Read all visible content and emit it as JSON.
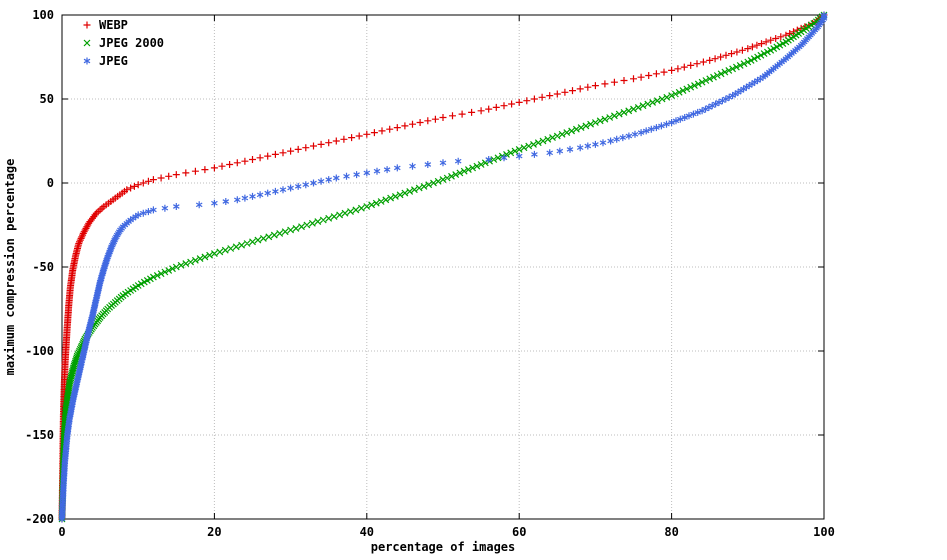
{
  "chart_data": {
    "type": "scatter",
    "title": "",
    "xlabel": "percentage of images",
    "ylabel": "maximum compression percentage",
    "xlim": [
      0,
      100
    ],
    "ylim": [
      -200,
      100
    ],
    "x_ticks": [
      0,
      20,
      40,
      60,
      80,
      100
    ],
    "y_ticks": [
      100,
      50,
      0,
      -50,
      -100,
      -150,
      -200
    ],
    "grid": true,
    "legend_position": "top-left",
    "marker_y_step": 1,
    "grid_color": "#bdbdbd",
    "border_color": "#000000",
    "series": [
      {
        "name": "WEBP",
        "marker": "plus",
        "color": "#e00000",
        "points": [
          [
            0,
            -200
          ],
          [
            0.1,
            -170
          ],
          [
            0.15,
            -150
          ],
          [
            0.2,
            -135
          ],
          [
            0.3,
            -120
          ],
          [
            0.4,
            -108
          ],
          [
            0.5,
            -100
          ],
          [
            0.7,
            -85
          ],
          [
            0.9,
            -72
          ],
          [
            1.1,
            -62
          ],
          [
            1.4,
            -52
          ],
          [
            1.8,
            -43
          ],
          [
            2.2,
            -36
          ],
          [
            2.8,
            -30
          ],
          [
            3.5,
            -24
          ],
          [
            4.5,
            -18
          ],
          [
            5.5,
            -14
          ],
          [
            7,
            -9
          ],
          [
            8.5,
            -4
          ],
          [
            10,
            -1
          ],
          [
            12,
            2
          ],
          [
            15,
            5
          ],
          [
            20,
            9
          ],
          [
            25,
            14
          ],
          [
            30,
            19
          ],
          [
            35,
            24
          ],
          [
            40,
            29
          ],
          [
            45,
            34
          ],
          [
            50,
            39
          ],
          [
            55,
            43
          ],
          [
            60,
            48
          ],
          [
            65,
            53
          ],
          [
            70,
            58
          ],
          [
            75,
            62
          ],
          [
            80,
            67
          ],
          [
            85,
            73
          ],
          [
            90,
            80
          ],
          [
            93,
            85
          ],
          [
            95,
            88
          ],
          [
            97,
            92
          ],
          [
            99,
            96
          ],
          [
            100,
            100
          ]
        ]
      },
      {
        "name": "JPEG 2000",
        "marker": "cross",
        "color": "#00a000",
        "points": [
          [
            0,
            -200
          ],
          [
            0.1,
            -180
          ],
          [
            0.2,
            -160
          ],
          [
            0.3,
            -148
          ],
          [
            0.5,
            -135
          ],
          [
            0.8,
            -125
          ],
          [
            1,
            -119
          ],
          [
            1.5,
            -110
          ],
          [
            2,
            -103
          ],
          [
            3,
            -93
          ],
          [
            4,
            -86
          ],
          [
            5,
            -80
          ],
          [
            6,
            -75
          ],
          [
            8,
            -67
          ],
          [
            10,
            -61
          ],
          [
            12,
            -56
          ],
          [
            15,
            -50
          ],
          [
            20,
            -42
          ],
          [
            25,
            -35
          ],
          [
            30,
            -28
          ],
          [
            35,
            -21
          ],
          [
            40,
            -14
          ],
          [
            45,
            -6
          ],
          [
            50,
            2
          ],
          [
            55,
            11
          ],
          [
            60,
            20
          ],
          [
            65,
            28
          ],
          [
            70,
            36
          ],
          [
            75,
            44
          ],
          [
            80,
            52
          ],
          [
            85,
            62
          ],
          [
            90,
            72
          ],
          [
            93,
            79
          ],
          [
            95,
            84
          ],
          [
            97,
            90
          ],
          [
            99,
            96
          ],
          [
            100,
            100
          ]
        ]
      },
      {
        "name": "JPEG",
        "marker": "asterisk",
        "color": "#4169e1",
        "points": [
          [
            0,
            -200
          ],
          [
            0.2,
            -180
          ],
          [
            0.4,
            -165
          ],
          [
            0.7,
            -150
          ],
          [
            1,
            -140
          ],
          [
            1.5,
            -128
          ],
          [
            2,
            -118
          ],
          [
            2.5,
            -108
          ],
          [
            3,
            -98
          ],
          [
            3.5,
            -88
          ],
          [
            4,
            -79
          ],
          [
            4.5,
            -69
          ],
          [
            5,
            -59
          ],
          [
            5.5,
            -51
          ],
          [
            6,
            -44
          ],
          [
            6.5,
            -38
          ],
          [
            7,
            -33
          ],
          [
            7.5,
            -29
          ],
          [
            8,
            -26
          ],
          [
            9,
            -22
          ],
          [
            10,
            -19
          ],
          [
            12,
            -16
          ],
          [
            15,
            -14
          ],
          [
            18,
            -13
          ],
          [
            20,
            -12
          ],
          [
            23,
            -10
          ],
          [
            26,
            -7
          ],
          [
            30,
            -3
          ],
          [
            33,
            0
          ],
          [
            36,
            3
          ],
          [
            40,
            6
          ],
          [
            44,
            9
          ],
          [
            48,
            11
          ],
          [
            52,
            13
          ],
          [
            56,
            14
          ],
          [
            60,
            16
          ],
          [
            64,
            18
          ],
          [
            68,
            21
          ],
          [
            72,
            25
          ],
          [
            76,
            30
          ],
          [
            80,
            36
          ],
          [
            84,
            43
          ],
          [
            88,
            52
          ],
          [
            92,
            63
          ],
          [
            95,
            74
          ],
          [
            97,
            82
          ],
          [
            98,
            87
          ],
          [
            99,
            92
          ],
          [
            100,
            98
          ]
        ]
      }
    ]
  }
}
